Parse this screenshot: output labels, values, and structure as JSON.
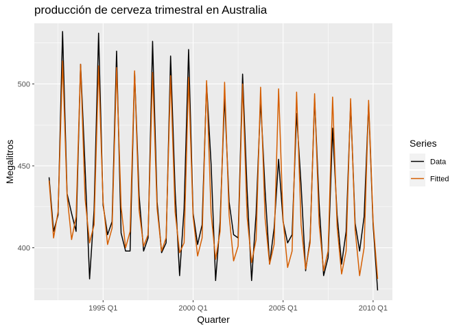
{
  "chart_data": {
    "type": "line",
    "title": "producción de cerveza trimestral en Australia",
    "xlabel": "Quarter",
    "ylabel": "Megalitros",
    "x_start": "1992 Q1",
    "x_end": "2010 Q2",
    "x_ticks": [
      "1995 Q1",
      "2000 Q1",
      "2005 Q1",
      "2010 Q1"
    ],
    "y_ticks": [
      400,
      450,
      500
    ],
    "ylim": [
      368,
      537
    ],
    "grid": true,
    "legend_title": "Series",
    "legend_position": "right",
    "series": [
      {
        "name": "Data",
        "color": "#000000",
        "values": [
          443,
          410,
          420,
          532,
          433,
          421,
          410,
          512,
          449,
          381,
          423,
          531,
          426,
          408,
          416,
          520,
          409,
          398,
          398,
          507,
          432,
          398,
          406,
          526,
          428,
          397,
          403,
          517,
          435,
          383,
          424,
          521,
          421,
          402,
          414,
          500,
          451,
          380,
          416,
          492,
          428,
          408,
          406,
          506,
          435,
          380,
          421,
          490,
          435,
          390,
          412,
          454,
          416,
          403,
          408,
          482,
          438,
          386,
          405,
          491,
          427,
          383,
          394,
          473,
          420,
          390,
          410,
          488,
          415,
          398,
          419,
          488,
          414,
          374
        ]
      },
      {
        "name": "Fitted",
        "color": "#d55e00",
        "values": [
          441,
          406,
          422,
          514,
          432,
          405,
          419,
          512,
          430,
          403,
          414,
          511,
          428,
          402,
          412,
          510,
          425,
          400,
          410,
          508,
          423,
          401,
          408,
          507,
          424,
          398,
          406,
          505,
          422,
          397,
          403,
          504,
          419,
          395,
          406,
          502,
          421,
          393,
          410,
          501,
          420,
          392,
          401,
          500,
          419,
          391,
          405,
          498,
          418,
          390,
          402,
          497,
          417,
          388,
          398,
          495,
          414,
          387,
          403,
          494,
          415,
          386,
          398,
          492,
          413,
          384,
          398,
          491,
          411,
          383,
          400,
          490,
          416,
          381
        ]
      }
    ]
  }
}
